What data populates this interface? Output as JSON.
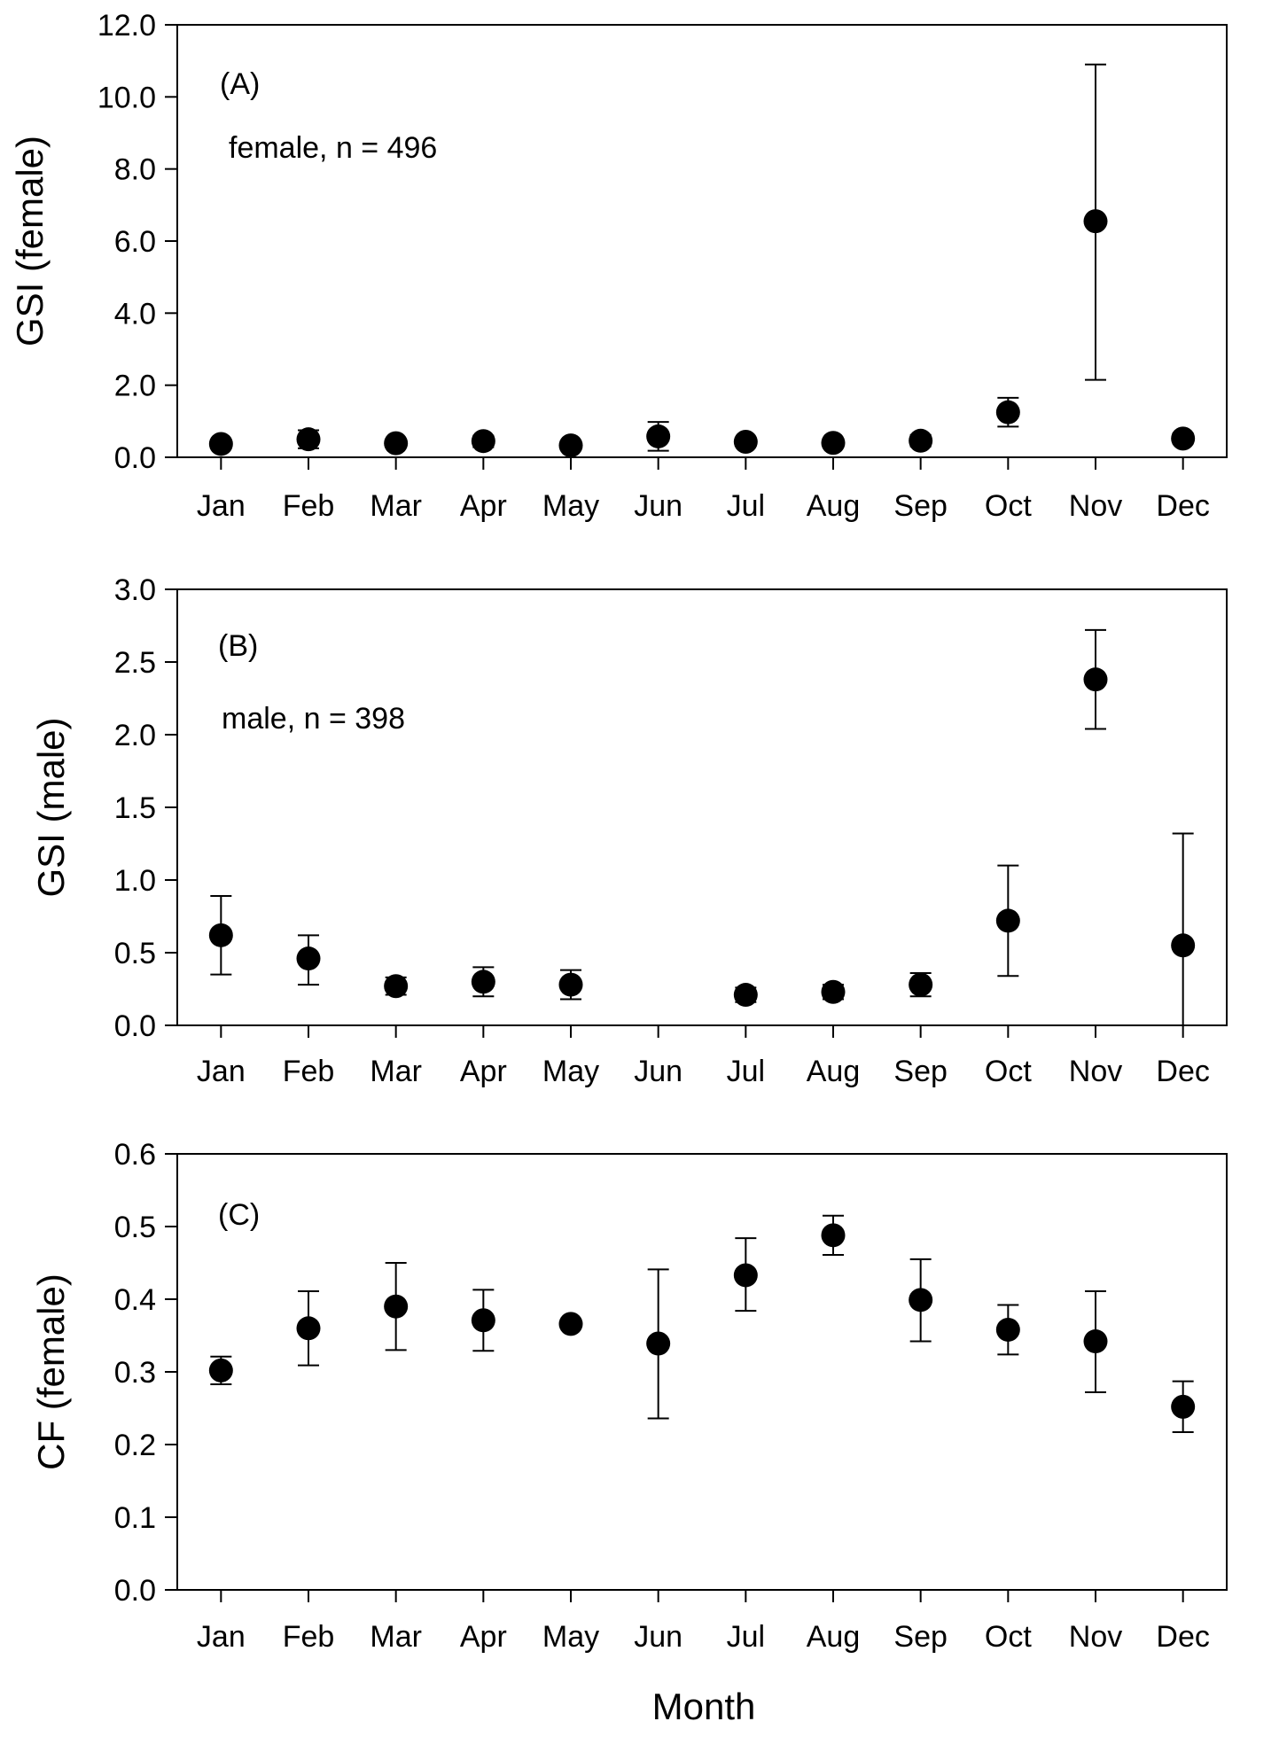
{
  "figure": {
    "xlabel": "Month"
  },
  "chart_data": [
    {
      "type": "scatter",
      "panel_label": "(A)",
      "annotation": "female, n = 496",
      "ylabel": "GSI (female)",
      "xlabel": "",
      "ylim": [
        0,
        12
      ],
      "yticks": [
        "0.0",
        "2.0",
        "4.0",
        "6.0",
        "8.0",
        "10.0",
        "12.0"
      ],
      "categories": [
        "Jan",
        "Feb",
        "Mar",
        "Apr",
        "May",
        "Jun",
        "Jul",
        "Aug",
        "Sep",
        "Oct",
        "Nov",
        "Dec"
      ],
      "series": [
        {
          "values": [
            0.37,
            0.5,
            0.39,
            0.45,
            0.33,
            0.58,
            0.43,
            0.4,
            0.46,
            1.25,
            6.55,
            0.52
          ],
          "error_low": [
            0.28,
            0.25,
            0.28,
            0.28,
            0.26,
            0.18,
            0.33,
            0.32,
            0.3,
            0.85,
            2.15,
            0.38
          ],
          "error_high": [
            0.46,
            0.75,
            0.5,
            0.6,
            0.4,
            0.98,
            0.53,
            0.5,
            0.62,
            1.65,
            10.9,
            0.66
          ]
        }
      ],
      "grid": false
    },
    {
      "type": "scatter",
      "panel_label": "(B)",
      "annotation": "male, n = 398",
      "ylabel": "GSI (male)",
      "xlabel": "",
      "ylim": [
        0,
        3
      ],
      "yticks": [
        "0.0",
        "0.5",
        "1.0",
        "1.5",
        "2.0",
        "2.5",
        "3.0"
      ],
      "categories": [
        "Jan",
        "Feb",
        "Mar",
        "Apr",
        "May",
        "Jun",
        "Jul",
        "Aug",
        "Sep",
        "Oct",
        "Nov",
        "Dec"
      ],
      "series": [
        {
          "values": [
            0.62,
            0.46,
            0.27,
            0.3,
            0.28,
            null,
            0.21,
            0.23,
            0.28,
            0.72,
            2.38,
            0.55
          ],
          "error_low": [
            0.35,
            0.28,
            0.21,
            0.2,
            0.18,
            null,
            0.16,
            0.18,
            0.2,
            0.34,
            2.04,
            0.0
          ],
          "error_high": [
            0.89,
            0.62,
            0.33,
            0.4,
            0.38,
            null,
            0.26,
            0.28,
            0.36,
            1.1,
            2.72,
            1.32
          ]
        }
      ],
      "grid": false
    },
    {
      "type": "scatter",
      "panel_label": "(C)",
      "annotation": "",
      "ylabel": "CF (female)",
      "xlabel": "Month",
      "ylim": [
        0,
        0.6
      ],
      "yticks": [
        "0.0",
        "0.1",
        "0.2",
        "0.3",
        "0.4",
        "0.5",
        "0.6"
      ],
      "categories": [
        "Jan",
        "Feb",
        "Mar",
        "Apr",
        "May",
        "Jun",
        "Jul",
        "Aug",
        "Sep",
        "Oct",
        "Nov",
        "Dec"
      ],
      "series": [
        {
          "values": [
            0.302,
            0.36,
            0.39,
            0.371,
            0.366,
            0.339,
            0.433,
            0.488,
            0.399,
            0.358,
            0.342,
            0.252
          ],
          "error_low": [
            0.283,
            0.309,
            0.33,
            0.329,
            0.366,
            0.236,
            0.384,
            0.461,
            0.342,
            0.324,
            0.272,
            0.217
          ],
          "error_high": [
            0.321,
            0.411,
            0.45,
            0.413,
            0.366,
            0.441,
            0.484,
            0.515,
            0.455,
            0.392,
            0.411,
            0.287
          ]
        }
      ],
      "grid": false
    }
  ]
}
